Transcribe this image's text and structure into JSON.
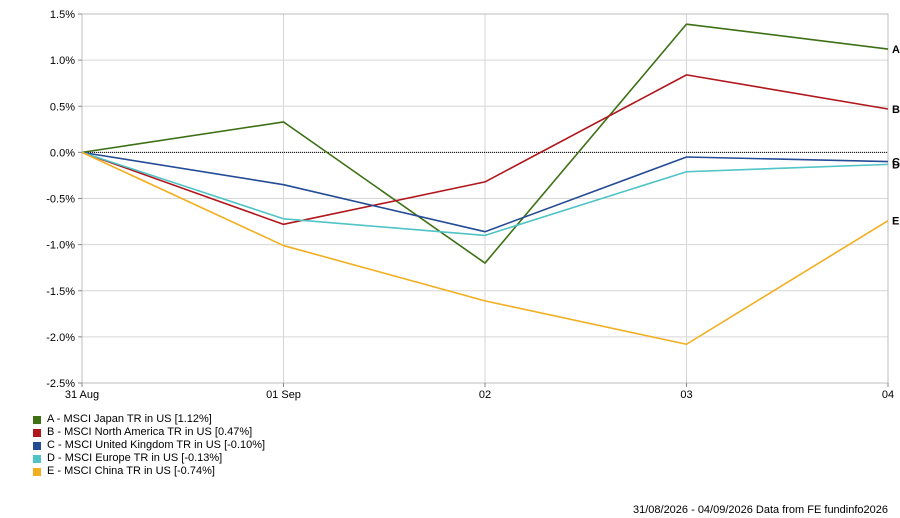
{
  "chart_data": {
    "type": "line",
    "x": [
      "31 Aug",
      "01 Sep",
      "02",
      "03",
      "04"
    ],
    "ylim": [
      -2.5,
      1.5
    ],
    "yticks": [
      1.5,
      1.0,
      0.5,
      0.0,
      -0.5,
      -1.0,
      -1.5,
      -2.0,
      -2.5
    ],
    "ytick_labels": [
      "1.5%",
      "1.0%",
      "0.5%",
      "0.0%",
      "-0.5%",
      "-1.0%",
      "-1.5%",
      "-2.0%",
      "-2.5%"
    ],
    "grid": true,
    "series": [
      {
        "key": "A",
        "name": "A - MSCI Japan TR in US [1.12%]",
        "color": "#3e7116",
        "values": [
          0.0,
          0.33,
          -1.2,
          1.39,
          1.12
        ]
      },
      {
        "key": "B",
        "name": "B - MSCI North America TR in US [0.47%]",
        "color": "#b0161c",
        "values": [
          0.0,
          -0.78,
          -0.32,
          0.84,
          0.47
        ]
      },
      {
        "key": "C",
        "name": "C - MSCI United Kingdom TR in US [-0.10%]",
        "color": "#244b95",
        "values": [
          0.0,
          -0.35,
          -0.86,
          -0.05,
          -0.1
        ]
      },
      {
        "key": "D",
        "name": "D - MSCI Europe TR in US [-0.13%]",
        "color": "#4fc3c6",
        "values": [
          0.0,
          -0.72,
          -0.9,
          -0.21,
          -0.13
        ]
      },
      {
        "key": "E",
        "name": "E - MSCI China TR in US [-0.74%]",
        "color": "#f2ae1f",
        "values": [
          0.0,
          -1.01,
          -1.61,
          -2.08,
          -0.74
        ]
      }
    ]
  },
  "footer": "31/08/2026 - 04/09/2026 Data from FE fundinfo2026"
}
